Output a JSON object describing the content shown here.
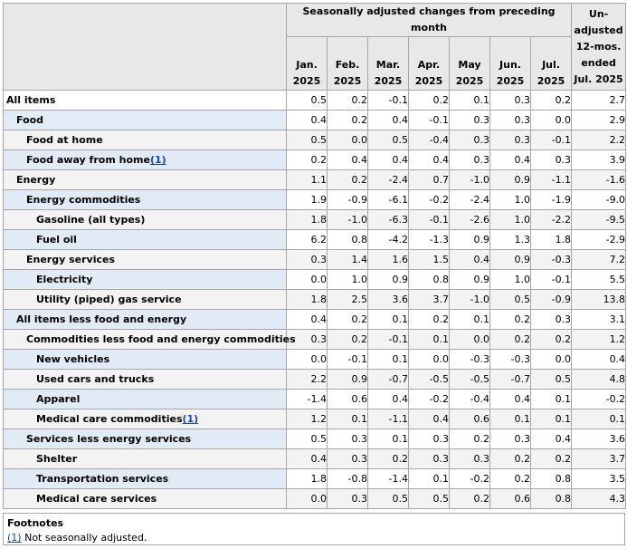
{
  "header": {
    "group_label": "Seasonally adjusted changes from preceding month",
    "months": [
      {
        "m": "Jan.",
        "y": "2025"
      },
      {
        "m": "Feb.",
        "y": "2025"
      },
      {
        "m": "Mar.",
        "y": "2025"
      },
      {
        "m": "Apr.",
        "y": "2025"
      },
      {
        "m": "May",
        "y": "2025"
      },
      {
        "m": "Jun.",
        "y": "2025"
      },
      {
        "m": "Jul.",
        "y": "2025"
      }
    ],
    "unadjusted_lines": [
      "Un-",
      "adjusted",
      "12-mos.",
      "ended",
      "Jul. 2025"
    ]
  },
  "rows": [
    {
      "label": "All items",
      "level": 0,
      "footnote": "",
      "values": [
        "0.5",
        "0.2",
        "-0.1",
        "0.2",
        "0.1",
        "0.3",
        "0.2",
        "2.7"
      ]
    },
    {
      "label": "Food",
      "level": 1,
      "footnote": "",
      "values": [
        "0.4",
        "0.2",
        "0.4",
        "-0.1",
        "0.3",
        "0.3",
        "0.0",
        "2.9"
      ]
    },
    {
      "label": "Food at home",
      "level": 2,
      "footnote": "",
      "values": [
        "0.5",
        "0.0",
        "0.5",
        "-0.4",
        "0.3",
        "0.3",
        "-0.1",
        "2.2"
      ]
    },
    {
      "label": "Food away from home",
      "level": 2,
      "footnote": "(1)",
      "values": [
        "0.2",
        "0.4",
        "0.4",
        "0.4",
        "0.3",
        "0.4",
        "0.3",
        "3.9"
      ]
    },
    {
      "label": "Energy",
      "level": 1,
      "footnote": "",
      "values": [
        "1.1",
        "0.2",
        "-2.4",
        "0.7",
        "-1.0",
        "0.9",
        "-1.1",
        "-1.6"
      ]
    },
    {
      "label": "Energy commodities",
      "level": 2,
      "footnote": "",
      "values": [
        "1.9",
        "-0.9",
        "-6.1",
        "-0.2",
        "-2.4",
        "1.0",
        "-1.9",
        "-9.0"
      ]
    },
    {
      "label": "Gasoline (all types)",
      "level": 3,
      "footnote": "",
      "values": [
        "1.8",
        "-1.0",
        "-6.3",
        "-0.1",
        "-2.6",
        "1.0",
        "-2.2",
        "-9.5"
      ]
    },
    {
      "label": "Fuel oil",
      "level": 3,
      "footnote": "",
      "values": [
        "6.2",
        "0.8",
        "-4.2",
        "-1.3",
        "0.9",
        "1.3",
        "1.8",
        "-2.9"
      ]
    },
    {
      "label": "Energy services",
      "level": 2,
      "footnote": "",
      "values": [
        "0.3",
        "1.4",
        "1.6",
        "1.5",
        "0.4",
        "0.9",
        "-0.3",
        "7.2"
      ]
    },
    {
      "label": "Electricity",
      "level": 3,
      "footnote": "",
      "values": [
        "0.0",
        "1.0",
        "0.9",
        "0.8",
        "0.9",
        "1.0",
        "-0.1",
        "5.5"
      ]
    },
    {
      "label": "Utility (piped) gas service",
      "level": 3,
      "footnote": "",
      "values": [
        "1.8",
        "2.5",
        "3.6",
        "3.7",
        "-1.0",
        "0.5",
        "-0.9",
        "13.8"
      ]
    },
    {
      "label": "All items less food and energy",
      "level": 1,
      "footnote": "",
      "values": [
        "0.4",
        "0.2",
        "0.1",
        "0.2",
        "0.1",
        "0.2",
        "0.3",
        "3.1"
      ]
    },
    {
      "label": "Commodities less food and energy commodities",
      "level": 2,
      "footnote": "",
      "values": [
        "0.3",
        "0.2",
        "-0.1",
        "0.1",
        "0.0",
        "0.2",
        "0.2",
        "1.2"
      ]
    },
    {
      "label": "New vehicles",
      "level": 3,
      "footnote": "",
      "values": [
        "0.0",
        "-0.1",
        "0.1",
        "0.0",
        "-0.3",
        "-0.3",
        "0.0",
        "0.4"
      ]
    },
    {
      "label": "Used cars and trucks",
      "level": 3,
      "footnote": "",
      "values": [
        "2.2",
        "0.9",
        "-0.7",
        "-0.5",
        "-0.5",
        "-0.7",
        "0.5",
        "4.8"
      ]
    },
    {
      "label": "Apparel",
      "level": 3,
      "footnote": "",
      "values": [
        "-1.4",
        "0.6",
        "0.4",
        "-0.2",
        "-0.4",
        "0.4",
        "0.1",
        "-0.2"
      ]
    },
    {
      "label": "Medical care commodities",
      "level": 3,
      "footnote": "(1)",
      "values": [
        "1.2",
        "0.1",
        "-1.1",
        "0.4",
        "0.6",
        "0.1",
        "0.1",
        "0.1"
      ]
    },
    {
      "label": "Services less energy services",
      "level": 2,
      "footnote": "",
      "values": [
        "0.5",
        "0.3",
        "0.1",
        "0.3",
        "0.2",
        "0.3",
        "0.4",
        "3.6"
      ]
    },
    {
      "label": "Shelter",
      "level": 3,
      "footnote": "",
      "values": [
        "0.4",
        "0.3",
        "0.2",
        "0.3",
        "0.3",
        "0.2",
        "0.2",
        "3.7"
      ]
    },
    {
      "label": "Transportation services",
      "level": 3,
      "footnote": "",
      "values": [
        "1.8",
        "-0.8",
        "-1.4",
        "0.1",
        "-0.2",
        "0.2",
        "0.8",
        "3.5"
      ]
    },
    {
      "label": "Medical care services",
      "level": 3,
      "footnote": "",
      "values": [
        "0.0",
        "0.3",
        "0.5",
        "0.5",
        "0.2",
        "0.6",
        "0.8",
        "4.3"
      ]
    }
  ],
  "footnotes": {
    "title": "Footnotes",
    "items": [
      {
        "ref": "(1)",
        "text": " Not seasonally adjusted."
      }
    ]
  }
}
